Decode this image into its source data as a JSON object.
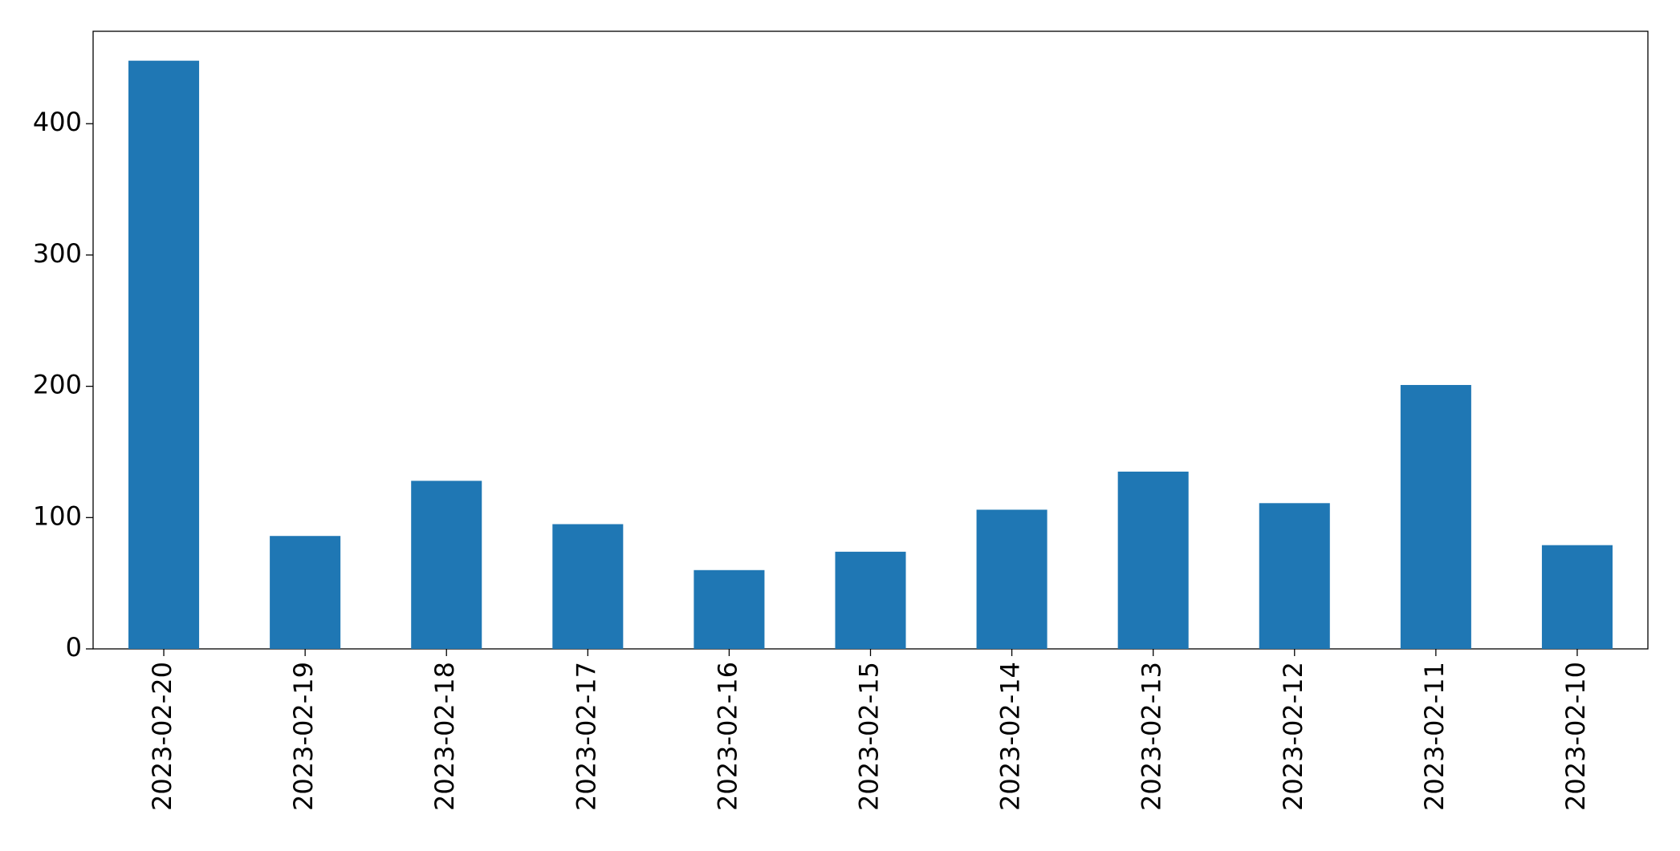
{
  "chart_data": {
    "type": "bar",
    "categories": [
      "2023-02-20",
      "2023-02-19",
      "2023-02-18",
      "2023-02-17",
      "2023-02-16",
      "2023-02-15",
      "2023-02-14",
      "2023-02-13",
      "2023-02-12",
      "2023-02-11",
      "2023-02-10"
    ],
    "values": [
      448,
      86,
      128,
      95,
      60,
      74,
      106,
      135,
      111,
      201,
      79
    ],
    "color": "#1f77b4",
    "ylim": [
      0,
      470.4
    ],
    "yticks": [
      0,
      100,
      200,
      300,
      400
    ],
    "grid": false
  }
}
